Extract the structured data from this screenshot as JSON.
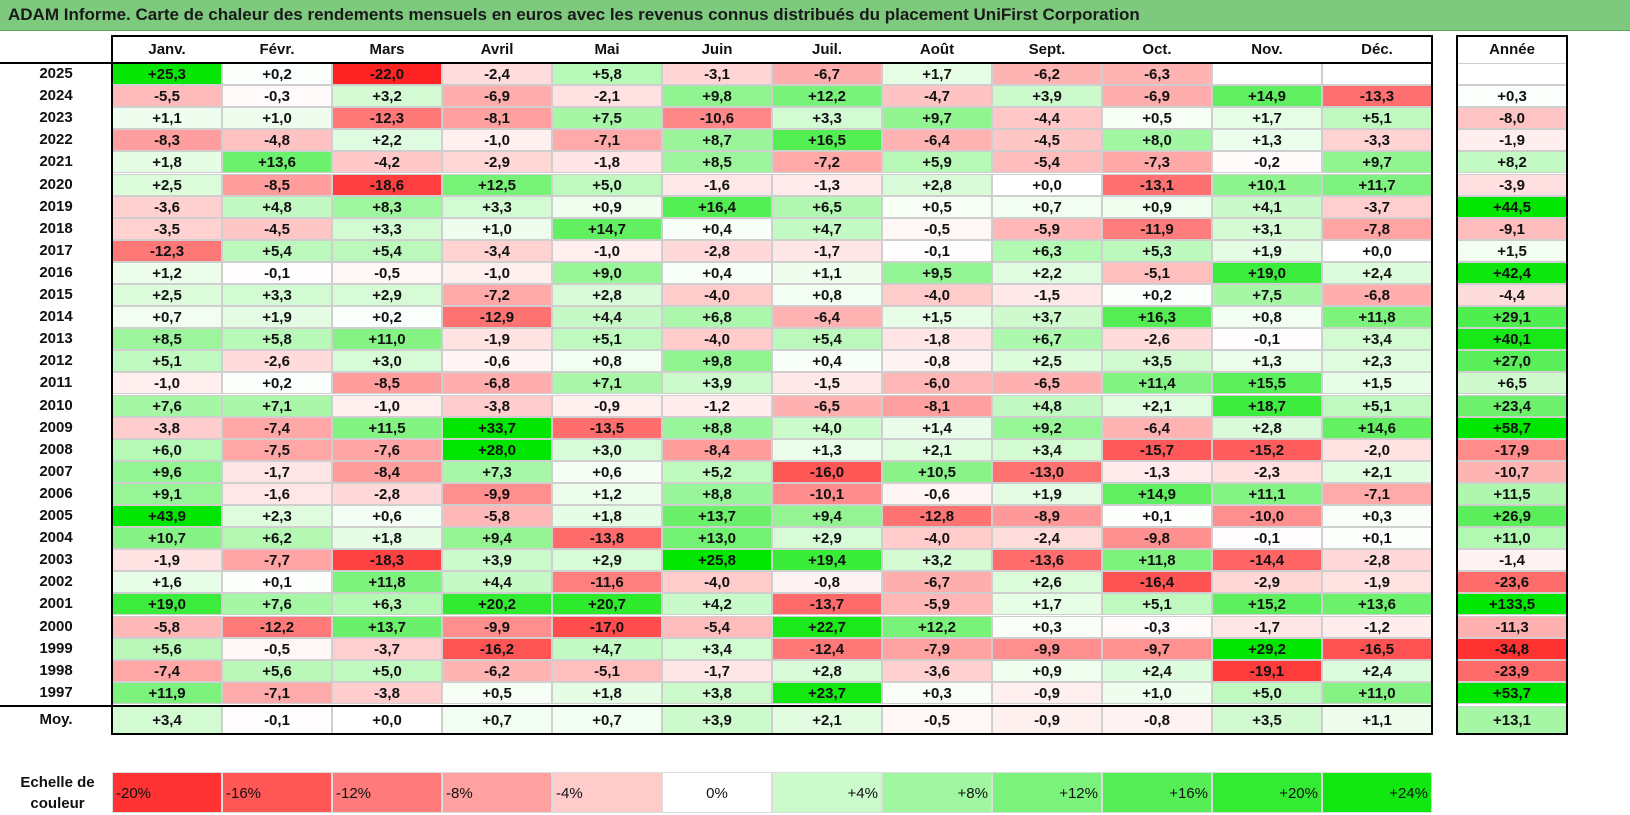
{
  "title": "ADAM Informe. Carte de chaleur des rendements mensuels en euros avec les revenus connus distribués du placement UniFirst Corporation",
  "chart_data": {
    "type": "heatmap",
    "columns": [
      "Janv.",
      "Févr.",
      "Mars",
      "Avril",
      "Mai",
      "Juin",
      "Juil.",
      "Août",
      "Sept.",
      "Oct.",
      "Nov.",
      "Déc."
    ],
    "annual_header": "Année",
    "rows": [
      {
        "year": "2025",
        "months": [
          "+25,3",
          "+0,2",
          "-22,0",
          "-2,4",
          "+5,8",
          "-3,1",
          "-6,7",
          "+1,7",
          "-6,2",
          "-6,3",
          "",
          ""
        ],
        "annual": ""
      },
      {
        "year": "2024",
        "months": [
          "-5,5",
          "-0,3",
          "+3,2",
          "-6,9",
          "-2,1",
          "+9,8",
          "+12,2",
          "-4,7",
          "+3,9",
          "-6,9",
          "+14,9",
          "-13,3"
        ],
        "annual": "+0,3"
      },
      {
        "year": "2023",
        "months": [
          "+1,1",
          "+1,0",
          "-12,3",
          "-8,1",
          "+7,5",
          "-10,6",
          "+3,3",
          "+9,7",
          "-4,4",
          "+0,5",
          "+1,7",
          "+5,1"
        ],
        "annual": "-8,0"
      },
      {
        "year": "2022",
        "months": [
          "-8,3",
          "-4,8",
          "+2,2",
          "-1,0",
          "-7,1",
          "+8,7",
          "+16,5",
          "-6,4",
          "-4,5",
          "+8,0",
          "+1,3",
          "-3,3"
        ],
        "annual": "-1,9"
      },
      {
        "year": "2021",
        "months": [
          "+1,8",
          "+13,6",
          "-4,2",
          "-2,9",
          "-1,8",
          "+8,5",
          "-7,2",
          "+5,9",
          "-5,4",
          "-7,3",
          "-0,2",
          "+9,7"
        ],
        "annual": "+8,2"
      },
      {
        "year": "2020",
        "months": [
          "+2,5",
          "-8,5",
          "-18,6",
          "+12,5",
          "+5,0",
          "-1,6",
          "-1,3",
          "+2,8",
          "+0,0",
          "-13,1",
          "+10,1",
          "+11,7"
        ],
        "annual": "-3,9"
      },
      {
        "year": "2019",
        "months": [
          "-3,6",
          "+4,8",
          "+8,3",
          "+3,3",
          "+0,9",
          "+16,4",
          "+6,5",
          "+0,5",
          "+0,7",
          "+0,9",
          "+4,1",
          "-3,7"
        ],
        "annual": "+44,5"
      },
      {
        "year": "2018",
        "months": [
          "-3,5",
          "-4,5",
          "+3,3",
          "+1,0",
          "+14,7",
          "+0,4",
          "+4,7",
          "-0,5",
          "-5,9",
          "-11,9",
          "+3,1",
          "-7,8"
        ],
        "annual": "-9,1"
      },
      {
        "year": "2017",
        "months": [
          "-12,3",
          "+5,4",
          "+5,4",
          "-3,4",
          "-1,0",
          "-2,8",
          "-1,7",
          "-0,1",
          "+6,3",
          "+5,3",
          "+1,9",
          "+0,0"
        ],
        "annual": "+1,5"
      },
      {
        "year": "2016",
        "months": [
          "+1,2",
          "-0,1",
          "-0,5",
          "-1,0",
          "+9,0",
          "+0,4",
          "+1,1",
          "+9,5",
          "+2,2",
          "-5,1",
          "+19,0",
          "+2,4"
        ],
        "annual": "+42,4"
      },
      {
        "year": "2015",
        "months": [
          "+2,5",
          "+3,3",
          "+2,9",
          "-7,2",
          "+2,8",
          "-4,0",
          "+0,8",
          "-4,0",
          "-1,5",
          "+0,2",
          "+7,5",
          "-6,8"
        ],
        "annual": "-4,4"
      },
      {
        "year": "2014",
        "months": [
          "+0,7",
          "+1,9",
          "+0,2",
          "-12,9",
          "+4,4",
          "+6,8",
          "-6,4",
          "+1,5",
          "+3,7",
          "+16,3",
          "+0,8",
          "+11,8"
        ],
        "annual": "+29,1"
      },
      {
        "year": "2013",
        "months": [
          "+8,5",
          "+5,8",
          "+11,0",
          "-1,9",
          "+5,1",
          "-4,0",
          "+5,4",
          "-1,8",
          "+6,7",
          "-2,6",
          "-0,1",
          "+3,4"
        ],
        "annual": "+40,1"
      },
      {
        "year": "2012",
        "months": [
          "+5,1",
          "-2,6",
          "+3,0",
          "-0,6",
          "+0,8",
          "+9,8",
          "+0,4",
          "-0,8",
          "+2,5",
          "+3,5",
          "+1,3",
          "+2,3"
        ],
        "annual": "+27,0"
      },
      {
        "year": "2011",
        "months": [
          "-1,0",
          "+0,2",
          "-8,5",
          "-6,8",
          "+7,1",
          "+3,9",
          "-1,5",
          "-6,0",
          "-6,5",
          "+11,4",
          "+15,5",
          "+1,5"
        ],
        "annual": "+6,5"
      },
      {
        "year": "2010",
        "months": [
          "+7,6",
          "+7,1",
          "-1,0",
          "-3,8",
          "-0,9",
          "-1,2",
          "-6,5",
          "-8,1",
          "+4,8",
          "+2,1",
          "+18,7",
          "+5,1"
        ],
        "annual": "+23,4"
      },
      {
        "year": "2009",
        "months": [
          "-3,8",
          "-7,4",
          "+11,5",
          "+33,7",
          "-13,5",
          "+8,8",
          "+4,0",
          "+1,4",
          "+9,2",
          "-6,4",
          "+2,8",
          "+14,6"
        ],
        "annual": "+58,7"
      },
      {
        "year": "2008",
        "months": [
          "+6,0",
          "-7,5",
          "-7,6",
          "+28,0",
          "+3,0",
          "-8,4",
          "+1,3",
          "+2,1",
          "+3,4",
          "-15,7",
          "-15,2",
          "-2,0"
        ],
        "annual": "-17,9"
      },
      {
        "year": "2007",
        "months": [
          "+9,6",
          "-1,7",
          "-8,4",
          "+7,3",
          "+0,6",
          "+5,2",
          "-16,0",
          "+10,5",
          "-13,0",
          "-1,3",
          "-2,3",
          "+2,1"
        ],
        "annual": "-10,7"
      },
      {
        "year": "2006",
        "months": [
          "+9,1",
          "-1,6",
          "-2,8",
          "-9,9",
          "+1,2",
          "+8,8",
          "-10,1",
          "-0,6",
          "+1,9",
          "+14,9",
          "+11,1",
          "-7,1"
        ],
        "annual": "+11,5"
      },
      {
        "year": "2005",
        "months": [
          "+43,9",
          "+2,3",
          "+0,6",
          "-5,8",
          "+1,8",
          "+13,7",
          "+9,4",
          "-12,8",
          "-8,9",
          "+0,1",
          "-10,0",
          "+0,3"
        ],
        "annual": "+26,9"
      },
      {
        "year": "2004",
        "months": [
          "+10,7",
          "+6,2",
          "+1,8",
          "+9,4",
          "-13,8",
          "+13,0",
          "+2,9",
          "-4,0",
          "-2,4",
          "-9,8",
          "-0,1",
          "+0,1"
        ],
        "annual": "+11,0"
      },
      {
        "year": "2003",
        "months": [
          "-1,9",
          "-7,7",
          "-18,3",
          "+3,9",
          "+2,9",
          "+25,8",
          "+19,4",
          "+3,2",
          "-13,6",
          "+11,8",
          "-14,4",
          "-2,8"
        ],
        "annual": "-1,4"
      },
      {
        "year": "2002",
        "months": [
          "+1,6",
          "+0,1",
          "+11,8",
          "+4,4",
          "-11,6",
          "-4,0",
          "-0,8",
          "-6,7",
          "+2,6",
          "-16,4",
          "-2,9",
          "-1,9"
        ],
        "annual": "-23,6"
      },
      {
        "year": "2001",
        "months": [
          "+19,0",
          "+7,6",
          "+6,3",
          "+20,2",
          "+20,7",
          "+4,2",
          "-13,7",
          "-5,9",
          "+1,7",
          "+5,1",
          "+15,2",
          "+13,6"
        ],
        "annual": "+133,5"
      },
      {
        "year": "2000",
        "months": [
          "-5,8",
          "-12,2",
          "+13,7",
          "-9,9",
          "-17,0",
          "-5,4",
          "+22,7",
          "+12,2",
          "+0,3",
          "-0,3",
          "-1,7",
          "-1,2"
        ],
        "annual": "-11,3"
      },
      {
        "year": "1999",
        "months": [
          "+5,6",
          "-0,5",
          "-3,7",
          "-16,2",
          "+4,7",
          "+3,4",
          "-12,4",
          "-7,9",
          "-9,9",
          "-9,7",
          "+29,2",
          "-16,5"
        ],
        "annual": "-34,8"
      },
      {
        "year": "1998",
        "months": [
          "-7,4",
          "+5,6",
          "+5,0",
          "-6,2",
          "-5,1",
          "-1,7",
          "+2,8",
          "-3,6",
          "+0,9",
          "+2,4",
          "-19,1",
          "+2,4"
        ],
        "annual": "-23,9"
      },
      {
        "year": "1997",
        "months": [
          "+11,9",
          "-7,1",
          "-3,8",
          "+0,5",
          "+1,8",
          "+3,8",
          "+23,7",
          "+0,3",
          "-0,9",
          "+1,0",
          "+5,0",
          "+11,0"
        ],
        "annual": "+53,7"
      }
    ],
    "average": {
      "label": "Moy.",
      "months": [
        "+3,4",
        "-0,1",
        "+0,0",
        "+0,7",
        "+0,7",
        "+3,9",
        "+2,1",
        "-0,5",
        "-0,9",
        "-0,8",
        "+3,5",
        "+1,1"
      ],
      "annual": "+13,1"
    },
    "legend": {
      "title": "Echelle de couleur",
      "labels": [
        "-20%",
        "-16%",
        "-12%",
        "-8%",
        "-4%",
        "0%",
        "+4%",
        "+8%",
        "+12%",
        "+16%",
        "+20%",
        "+24%"
      ],
      "values": [
        -20,
        -16,
        -12,
        -8,
        -4,
        0,
        4,
        8,
        12,
        16,
        20,
        24
      ]
    },
    "colors": {
      "negative_max": "#ff0000",
      "neutral": "#ffffff",
      "positive_max": "#00e600"
    }
  }
}
